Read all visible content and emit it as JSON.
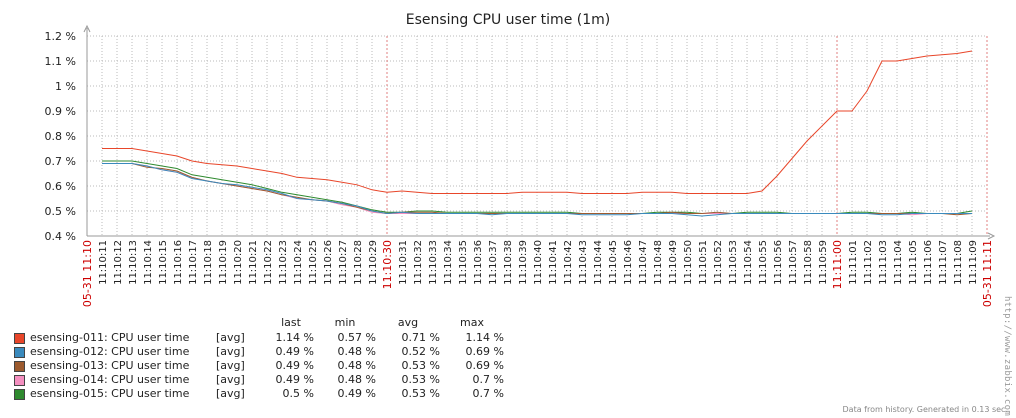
{
  "chart_data": {
    "type": "line",
    "title": "Esensing CPU user time (1m)",
    "ylim": [
      0.4,
      1.2
    ],
    "y_ticks": [
      "1.2 %",
      "1.1 %",
      "1 %",
      "0.9 %",
      "0.8 %",
      "0.7 %",
      "0.6 %",
      "0.5 %",
      "0.4 %"
    ],
    "x_start_label": "05-31 11:10",
    "x_end_label": "05-31 11:11",
    "x_red_labels": [
      "11:10:30",
      "11:11:00"
    ],
    "categories": [
      "11:10:11",
      "11:10:12",
      "11:10:13",
      "11:10:14",
      "11:10:15",
      "11:10:16",
      "11:10:17",
      "11:10:18",
      "11:10:19",
      "11:10:20",
      "11:10:21",
      "11:10:22",
      "11:10:23",
      "11:10:24",
      "11:10:25",
      "11:10:26",
      "11:10:27",
      "11:10:28",
      "11:10:29",
      "11:10:30",
      "11:10:31",
      "11:10:32",
      "11:10:33",
      "11:10:34",
      "11:10:35",
      "11:10:36",
      "11:10:37",
      "11:10:38",
      "11:10:39",
      "11:10:40",
      "11:10:41",
      "11:10:42",
      "11:10:43",
      "11:10:44",
      "11:10:45",
      "11:10:46",
      "11:10:47",
      "11:10:48",
      "11:10:49",
      "11:10:50",
      "11:10:51",
      "11:10:52",
      "11:10:53",
      "11:10:54",
      "11:10:55",
      "11:10:56",
      "11:10:57",
      "11:10:58",
      "11:10:59",
      "11:11:00",
      "11:11:01",
      "11:11:02",
      "11:11:03",
      "11:11:04",
      "11:11:05",
      "11:11:06",
      "11:11:07",
      "11:11:08",
      "11:11:09"
    ],
    "series": [
      {
        "name": "esensing-011: CPU user time",
        "color": "#e8462a",
        "values": [
          0.75,
          0.75,
          0.75,
          0.74,
          0.73,
          0.72,
          0.7,
          0.69,
          0.685,
          0.68,
          0.67,
          0.66,
          0.65,
          0.635,
          0.63,
          0.625,
          0.615,
          0.605,
          0.585,
          0.575,
          0.58,
          0.575,
          0.57,
          0.57,
          0.57,
          0.57,
          0.57,
          0.57,
          0.575,
          0.575,
          0.575,
          0.575,
          0.57,
          0.57,
          0.57,
          0.57,
          0.575,
          0.575,
          0.575,
          0.57,
          0.57,
          0.57,
          0.57,
          0.57,
          0.58,
          0.64,
          0.71,
          0.78,
          0.84,
          0.9,
          0.9,
          0.98,
          1.1,
          1.1,
          1.11,
          1.12,
          1.125,
          1.13,
          1.14
        ],
        "legend_type": "[avg]",
        "last": "1.14 %",
        "min": "0.57 %",
        "avg": "0.71 %",
        "max": "1.14 %"
      },
      {
        "name": "esensing-012: CPU user time",
        "color": "#3a8abd",
        "values": [
          0.69,
          0.69,
          0.69,
          0.68,
          0.665,
          0.655,
          0.63,
          0.62,
          0.61,
          0.605,
          0.595,
          0.585,
          0.57,
          0.55,
          0.545,
          0.54,
          0.53,
          0.52,
          0.5,
          0.49,
          0.495,
          0.49,
          0.49,
          0.49,
          0.49,
          0.49,
          0.485,
          0.49,
          0.49,
          0.49,
          0.49,
          0.49,
          0.485,
          0.485,
          0.485,
          0.485,
          0.49,
          0.49,
          0.49,
          0.485,
          0.48,
          0.485,
          0.49,
          0.49,
          0.49,
          0.49,
          0.49,
          0.49,
          0.49,
          0.49,
          0.49,
          0.49,
          0.485,
          0.485,
          0.49,
          0.49,
          0.49,
          0.49,
          0.49
        ],
        "legend_type": "[avg]",
        "last": "0.49 %",
        "min": "0.48 %",
        "avg": "0.52 %",
        "max": "0.69 %"
      },
      {
        "name": "esensing-013: CPU user time",
        "color": "#9c5a2e",
        "values": [
          0.69,
          0.69,
          0.69,
          0.675,
          0.67,
          0.66,
          0.635,
          0.62,
          0.61,
          0.6,
          0.59,
          0.58,
          0.565,
          0.555,
          0.545,
          0.54,
          0.53,
          0.515,
          0.5,
          0.49,
          0.495,
          0.495,
          0.495,
          0.49,
          0.49,
          0.49,
          0.49,
          0.49,
          0.49,
          0.49,
          0.49,
          0.49,
          0.49,
          0.49,
          0.49,
          0.49,
          0.49,
          0.49,
          0.495,
          0.49,
          0.49,
          0.495,
          0.49,
          0.49,
          0.49,
          0.49,
          0.49,
          0.49,
          0.49,
          0.49,
          0.49,
          0.49,
          0.49,
          0.49,
          0.49,
          0.49,
          0.49,
          0.485,
          0.49
        ],
        "legend_type": "[avg]",
        "last": "0.49 %",
        "min": "0.48 %",
        "avg": "0.53 %",
        "max": "0.69 %"
      },
      {
        "name": "esensing-014: CPU user time",
        "color": "#f48fc0",
        "values": [
          0.69,
          0.69,
          0.69,
          0.68,
          0.665,
          0.655,
          0.635,
          0.62,
          0.61,
          0.6,
          0.59,
          0.58,
          0.565,
          0.55,
          0.545,
          0.54,
          0.525,
          0.515,
          0.495,
          0.49,
          0.49,
          0.49,
          0.49,
          0.49,
          0.49,
          0.49,
          0.49,
          0.49,
          0.49,
          0.49,
          0.49,
          0.49,
          0.49,
          0.49,
          0.49,
          0.49,
          0.49,
          0.49,
          0.49,
          0.49,
          0.49,
          0.49,
          0.49,
          0.49,
          0.49,
          0.49,
          0.49,
          0.49,
          0.49,
          0.49,
          0.49,
          0.49,
          0.49,
          0.49,
          0.485,
          0.49,
          0.49,
          0.49,
          0.49
        ],
        "legend_type": "[avg]",
        "last": "0.49 %",
        "min": "0.48 %",
        "avg": "0.53 %",
        "max": "0.7 %"
      },
      {
        "name": "esensing-015: CPU user time",
        "color": "#2f8a2f",
        "values": [
          0.7,
          0.7,
          0.7,
          0.69,
          0.68,
          0.67,
          0.645,
          0.635,
          0.625,
          0.615,
          0.605,
          0.59,
          0.575,
          0.565,
          0.555,
          0.545,
          0.535,
          0.52,
          0.505,
          0.495,
          0.495,
          0.5,
          0.5,
          0.495,
          0.495,
          0.495,
          0.495,
          0.495,
          0.495,
          0.495,
          0.495,
          0.495,
          0.49,
          0.49,
          0.49,
          0.49,
          0.49,
          0.495,
          0.495,
          0.495,
          0.49,
          0.49,
          0.49,
          0.495,
          0.495,
          0.495,
          0.49,
          0.49,
          0.49,
          0.49,
          0.495,
          0.495,
          0.49,
          0.49,
          0.495,
          0.49,
          0.49,
          0.49,
          0.5
        ],
        "legend_type": "[avg]",
        "last": "0.5 %",
        "min": "0.49 %",
        "avg": "0.53 %",
        "max": "0.7 %"
      }
    ],
    "legend_headers": {
      "last": "last",
      "min": "min",
      "avg": "avg",
      "max": "max"
    }
  },
  "watermark": "http://www.zabbix.com",
  "footer": "Data from history. Generated in 0.13 sec."
}
